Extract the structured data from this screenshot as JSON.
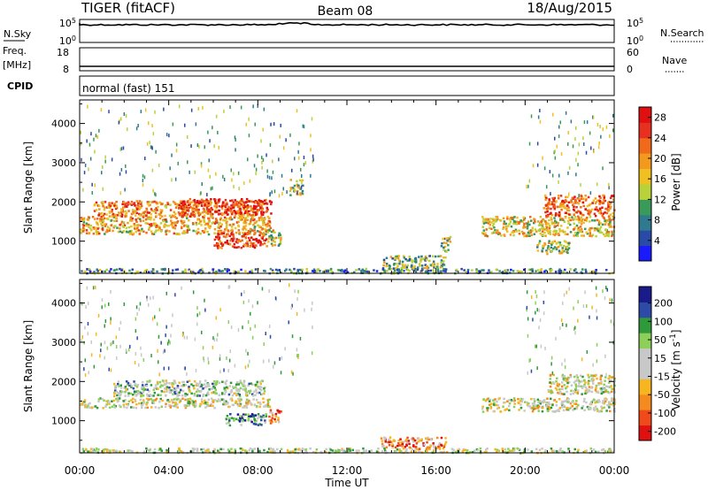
{
  "header": {
    "station": "TIGER (fitACF)",
    "beam": "Beam 08",
    "date": "18/Aug/2015"
  },
  "top_panels": {
    "nsky": {
      "label": "N.Sky",
      "ticks": [
        "10^5",
        "10^0"
      ],
      "right_label": "N.Search",
      "right_ticks": [
        "10^5",
        "10^0"
      ]
    },
    "freq": {
      "label_line1": "Freq.",
      "label_line2": "[MHz]",
      "ticks": [
        "18",
        "8"
      ],
      "right_label": "Nave",
      "right_ticks": [
        "60",
        "0"
      ]
    },
    "cpid": {
      "label": "CPID",
      "mode_text": "normal (fast) 151"
    }
  },
  "x_axis": {
    "label": "Time UT",
    "ticks": [
      "00:00",
      "04:00",
      "08:00",
      "12:00",
      "16:00",
      "20:00",
      "00:00"
    ]
  },
  "chart_data": [
    {
      "type": "heatmap",
      "title": "",
      "ylabel": "Slant Range [km]",
      "xlabel": "",
      "x_ticks": [
        "00:00",
        "04:00",
        "08:00",
        "12:00",
        "16:00",
        "20:00",
        "00:00"
      ],
      "x_range_hours": [
        0,
        24
      ],
      "ylim": [
        180,
        4600
      ],
      "y_ticks": [
        1000,
        2000,
        3000,
        4000
      ],
      "colorbar": {
        "label": "Power [dB]",
        "ticks": [
          "4",
          "8",
          "12",
          "16",
          "20",
          "24",
          "28"
        ],
        "range": [
          0,
          30
        ],
        "colors": [
          "#1a1aff",
          "#2a4aa8",
          "#2f7a8f",
          "#3a9a5a",
          "#b9d23a",
          "#f0c020",
          "#f39a1e",
          "#f06a1a",
          "#e83020",
          "#e01010"
        ]
      },
      "regions": [
        {
          "t0": 0.0,
          "t1": 24.0,
          "r0": 200,
          "r1": 320,
          "level": 0.3
        },
        {
          "t0": 0.0,
          "t1": 8.6,
          "r0": 1200,
          "r1": 1650,
          "level": 0.6
        },
        {
          "t0": 0.6,
          "t1": 8.2,
          "r0": 1650,
          "r1": 2050,
          "level": 0.7
        },
        {
          "t0": 4.5,
          "t1": 8.6,
          "r0": 1700,
          "r1": 2100,
          "level": 0.9
        },
        {
          "t0": 6.0,
          "t1": 8.4,
          "r0": 850,
          "r1": 1250,
          "level": 0.85
        },
        {
          "t0": 8.4,
          "t1": 9.0,
          "r0": 900,
          "r1": 1300,
          "level": 0.5
        },
        {
          "t0": 9.4,
          "t1": 10.0,
          "r0": 2200,
          "r1": 2600,
          "level": 0.45
        },
        {
          "t0": 13.5,
          "t1": 16.5,
          "r0": 300,
          "r1": 650,
          "level": 0.4
        },
        {
          "t0": 16.2,
          "t1": 16.6,
          "r0": 750,
          "r1": 1150,
          "level": 0.4
        },
        {
          "t0": 18.0,
          "t1": 24.0,
          "r0": 1150,
          "r1": 1650,
          "level": 0.55
        },
        {
          "t0": 20.8,
          "t1": 24.0,
          "r0": 1650,
          "r1": 2200,
          "level": 0.8
        },
        {
          "t0": 20.5,
          "t1": 22.0,
          "r0": 700,
          "r1": 1050,
          "level": 0.5
        },
        {
          "t0": 0.0,
          "t1": 10.5,
          "r0": 2200,
          "r1": 4500,
          "level": 0.35,
          "sparse": true
        },
        {
          "t0": 20.0,
          "t1": 24.0,
          "r0": 2200,
          "r1": 4500,
          "level": 0.35,
          "sparse": true
        }
      ]
    },
    {
      "type": "heatmap",
      "title": "",
      "ylabel": "Slant Range [km]",
      "xlabel": "Time UT",
      "x_ticks": [
        "00:00",
        "04:00",
        "08:00",
        "12:00",
        "16:00",
        "20:00",
        "00:00"
      ],
      "x_range_hours": [
        0,
        24
      ],
      "ylim": [
        180,
        4600
      ],
      "y_ticks": [
        1000,
        2000,
        3000,
        4000
      ],
      "colorbar": {
        "label": "Velocity [m s^-1]",
        "ticks": [
          "200",
          "100",
          "50",
          "15",
          "-15",
          "-50",
          "-100",
          "-200"
        ],
        "range": [
          -250,
          250
        ],
        "colors": [
          "#e01010",
          "#f04a1a",
          "#f58a1e",
          "#f7b620",
          "#c8c8c8",
          "#c8c8c8",
          "#8cd05a",
          "#2f9a3a",
          "#2e4aa8",
          "#1a1a8a"
        ]
      },
      "regions": [
        {
          "t0": 0.0,
          "t1": 24.0,
          "r0": 200,
          "r1": 320,
          "level": 0.55
        },
        {
          "t0": 0.0,
          "t1": 8.6,
          "r0": 1350,
          "r1": 1600,
          "level": 0.5
        },
        {
          "t0": 1.5,
          "t1": 8.3,
          "r0": 1650,
          "r1": 2050,
          "level": 0.6
        },
        {
          "t0": 6.5,
          "t1": 8.4,
          "r0": 900,
          "r1": 1200,
          "level": 0.75
        },
        {
          "t0": 8.4,
          "t1": 9.0,
          "r0": 950,
          "r1": 1300,
          "level": 0.2
        },
        {
          "t0": 13.5,
          "t1": 16.5,
          "r0": 300,
          "r1": 600,
          "level": 0.25
        },
        {
          "t0": 18.0,
          "t1": 24.0,
          "r0": 1250,
          "r1": 1600,
          "level": 0.5
        },
        {
          "t0": 21.0,
          "t1": 24.0,
          "r0": 1700,
          "r1": 2200,
          "level": 0.5
        },
        {
          "t0": 0.0,
          "t1": 10.5,
          "r0": 2200,
          "r1": 4500,
          "level": 0.6,
          "sparse": true
        },
        {
          "t0": 20.0,
          "t1": 24.0,
          "r0": 2200,
          "r1": 4500,
          "level": 0.6,
          "sparse": true
        }
      ]
    }
  ]
}
